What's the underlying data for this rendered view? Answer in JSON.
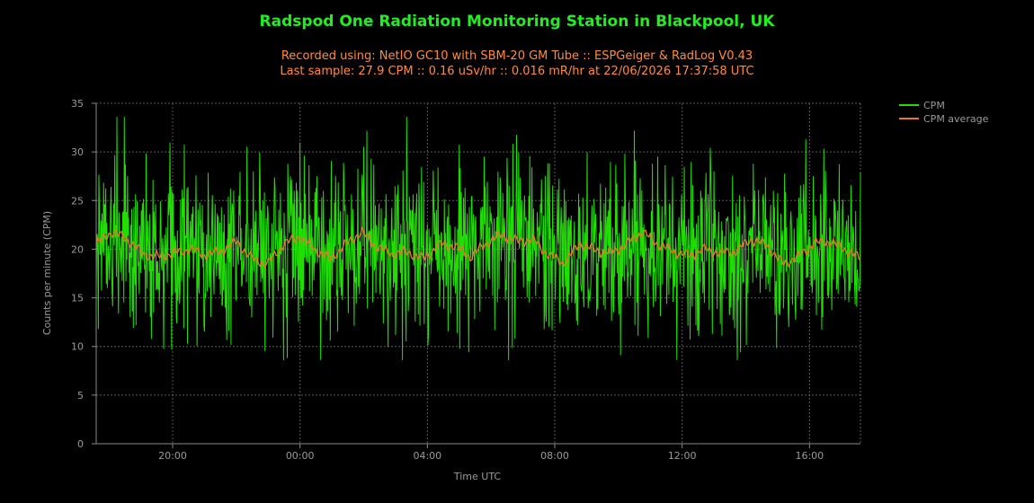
{
  "chart_data": {
    "type": "line",
    "title": "Radspod One Radiation Monitoring Station in Blackpool, UK",
    "subtitle_lines": [
      "Recorded using: NetIO GC10 with SBM-20 GM Tube :: ESPGeiger & RadLog V0.43",
      "Last sample: 27.9 CPM :: 0.16 uSv/hr :: 0.016 mR/hr at 22/06/2026 17:37:58 UTC"
    ],
    "xlabel": "Time UTC",
    "ylabel": "Counts per minute (CPM)",
    "ylim": [
      0,
      35
    ],
    "yticks": [
      0,
      5,
      10,
      15,
      20,
      25,
      30,
      35
    ],
    "xticks": [
      "20:00",
      "00:00",
      "04:00",
      "08:00",
      "12:00",
      "16:00"
    ],
    "x_range_hours": [
      17.6,
      41.6
    ],
    "grid": true,
    "legend_position": "top-right",
    "series": [
      {
        "name": "CPM",
        "color": "#22dd00",
        "approx_mean": 20,
        "approx_range": [
          8.6,
          33.6
        ]
      },
      {
        "name": "CPM average",
        "color": "#e07b2e",
        "values_every_half_hour": [
          20.5,
          21.8,
          21.0,
          19.5,
          19.2,
          19.6,
          20.0,
          19.4,
          19.8,
          20.8,
          19.0,
          18.5,
          20.5,
          21.3,
          20.0,
          19.0,
          20.5,
          21.8,
          20.2,
          19.5,
          19.7,
          19.0,
          20.5,
          20.3,
          19.2,
          20.6,
          21.5,
          20.8,
          21.0,
          19.4,
          18.6,
          20.6,
          19.9,
          19.6,
          20.5,
          21.8,
          20.5,
          19.8,
          19.3,
          20.0,
          19.6,
          19.8,
          21.0,
          20.4,
          18.5,
          19.2,
          20.6,
          20.8,
          20.0,
          19.0
        ]
      }
    ],
    "last_point": 27.9
  }
}
